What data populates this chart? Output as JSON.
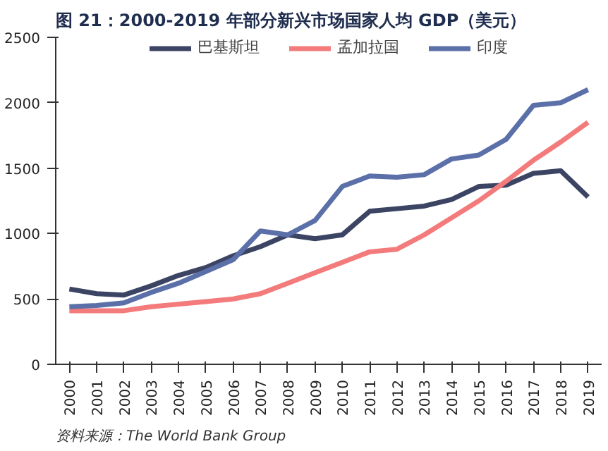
{
  "chart_data": {
    "type": "line",
    "title": "图 21：2000-2019 年部分新兴市场国家人均 GDP（美元）",
    "categories": [
      "2000",
      "2001",
      "2002",
      "2003",
      "2004",
      "2005",
      "2006",
      "2007",
      "2008",
      "2009",
      "2010",
      "2011",
      "2012",
      "2013",
      "2014",
      "2015",
      "2016",
      "2017",
      "2018",
      "2019"
    ],
    "series": [
      {
        "name": "巴基斯坦",
        "color": "#3c4464",
        "values": [
          576,
          540,
          530,
          600,
          680,
          740,
          830,
          900,
          990,
          960,
          990,
          1170,
          1190,
          1210,
          1260,
          1360,
          1370,
          1460,
          1480,
          1280
        ]
      },
      {
        "name": "孟加拉国",
        "color": "#f47b7b",
        "values": [
          410,
          410,
          410,
          440,
          460,
          480,
          500,
          540,
          620,
          700,
          780,
          860,
          880,
          990,
          1120,
          1250,
          1400,
          1560,
          1700,
          1850
        ]
      },
      {
        "name": "印度",
        "color": "#5b6fa8",
        "values": [
          440,
          450,
          470,
          550,
          620,
          710,
          800,
          1020,
          990,
          1100,
          1360,
          1440,
          1430,
          1450,
          1570,
          1600,
          1720,
          1980,
          2000,
          2100
        ]
      }
    ],
    "ylim": [
      0,
      2500
    ],
    "yticks": [
      0,
      500,
      1000,
      1500,
      2000,
      2500
    ],
    "grid": false,
    "legend": "top",
    "marker": "none",
    "line_style": "solid",
    "annotations": [
      "资料来源：The World Bank Group"
    ]
  }
}
